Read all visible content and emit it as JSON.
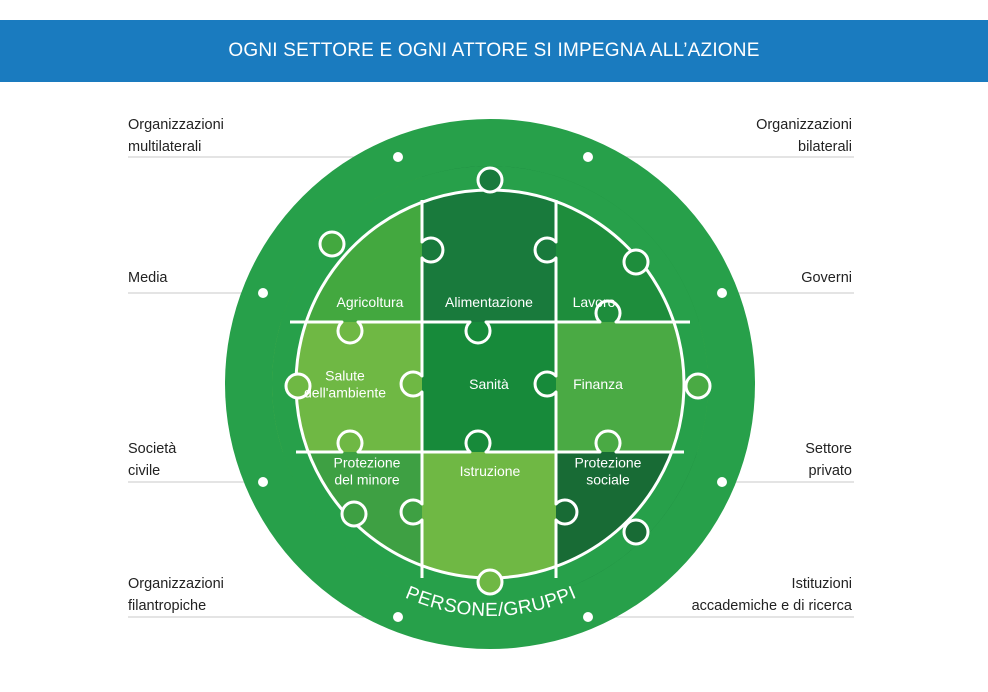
{
  "header": {
    "title": "OGNI SETTORE E OGNI ATTORE SI IMPEGNA ALL’AZIONE"
  },
  "actors_left": [
    {
      "id": "multilaterali",
      "lines": [
        "Organizzazioni",
        "multilaterali"
      ]
    },
    {
      "id": "media",
      "lines": [
        "Media"
      ]
    },
    {
      "id": "societa-civile",
      "lines": [
        "Società",
        "civile"
      ]
    },
    {
      "id": "filantropiche",
      "lines": [
        "Organizzazioni",
        "filantropiche"
      ]
    }
  ],
  "actors_right": [
    {
      "id": "bilaterali",
      "lines": [
        "Organizzazioni",
        "bilaterali"
      ]
    },
    {
      "id": "governi",
      "lines": [
        "Governi"
      ]
    },
    {
      "id": "settore-privato",
      "lines": [
        "Settore",
        "privato"
      ]
    },
    {
      "id": "istituzioni",
      "lines": [
        "Istituzioni",
        "accademiche e di ricerca"
      ]
    }
  ],
  "ring_label": "PERSONE/GRUPPI",
  "sectors": [
    {
      "id": "agricoltura",
      "lines": [
        "Agricoltura"
      ],
      "color": "#43a83f"
    },
    {
      "id": "alimentazione",
      "lines": [
        "Alimentazione"
      ],
      "color": "#197a3c"
    },
    {
      "id": "lavoro",
      "lines": [
        "Lavoro"
      ],
      "color": "#1e8d3c"
    },
    {
      "id": "salute-ambiente",
      "lines": [
        "Salute",
        "dell'ambiente"
      ],
      "color": "#6fb844"
    },
    {
      "id": "sanita",
      "lines": [
        "Sanità"
      ],
      "color": "#178a3a"
    },
    {
      "id": "finanza",
      "lines": [
        "Finanza"
      ],
      "color": "#4aaa44"
    },
    {
      "id": "protezione-minore",
      "lines": [
        "Protezione",
        "del minore"
      ],
      "color": "#3ea043"
    },
    {
      "id": "istruzione",
      "lines": [
        "Istruzione"
      ],
      "color": "#6fb844"
    },
    {
      "id": "protezione-sociale",
      "lines": [
        "Protezione",
        "sociale"
      ],
      "color": "#186b35"
    }
  ],
  "colors": {
    "banner": "#1a7bbf",
    "ring": "#27a04a",
    "connector_line": "#c8c8c8",
    "text": "#222222"
  }
}
